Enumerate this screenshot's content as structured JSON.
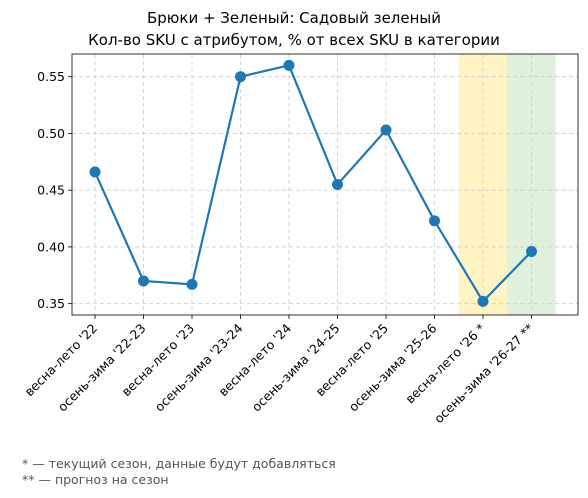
{
  "chart_data": {
    "type": "line",
    "title": "Брюки + Зеленый: Садовый зеленый",
    "subtitle": "Кол-во SKU с атрибутом, % от всех SKU в категории",
    "categories": [
      "весна-лето '22",
      "осень-зима '22-23",
      "весна-лето '23",
      "осень-зима '23-24",
      "весна-лето '24",
      "осень-зима '24-25",
      "весна-лето '25",
      "осень-зима '25-26",
      "весна-лето '26 *",
      "осень-зима '26-27 **"
    ],
    "series": [
      {
        "values": [
          0.466,
          0.37,
          0.367,
          0.55,
          0.56,
          0.455,
          0.503,
          0.423,
          0.352,
          0.396
        ],
        "color": "#1f77b4"
      }
    ],
    "ylim": [
      0.34,
      0.57
    ],
    "yticks": [
      0.35,
      0.4,
      0.45,
      0.5,
      0.55
    ],
    "ytick_labels": [
      "0.35",
      "0.40",
      "0.45",
      "0.50",
      "0.55"
    ],
    "grid": true,
    "highlight_bands": [
      {
        "category_index": 8,
        "color": "#fff3c4"
      },
      {
        "category_index": 9,
        "color": "#dff0dd"
      }
    ]
  },
  "footnotes": {
    "current": "* — текущий сезон, данные будут добавляться",
    "forecast": "** — прогноз на сезон"
  }
}
